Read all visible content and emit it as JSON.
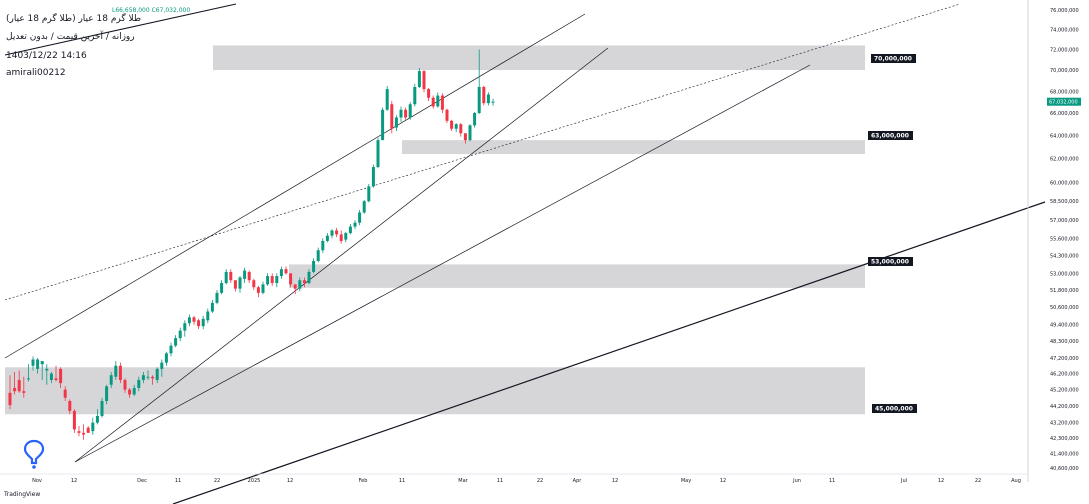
{
  "header": {
    "title": "طلا گرم 18 عیار (طلا گرم 18 عیار)",
    "subtitle": "روزانه / آخرین قیمت / بدون تعدیل",
    "datetime": "1403/12/22 14:16",
    "author": "amirali00212",
    "ohlc": "L66,658,000 C67,032,000"
  },
  "footer": {
    "logo_text": "TradingView"
  },
  "colors": {
    "up": "#089981",
    "down": "#f23645",
    "zone": "#cfcfd2",
    "last_price_bg": "#089981"
  },
  "chart_data": {
    "type": "candlestick",
    "y_scale": "log",
    "yaxis_ticks": [
      "40,600,000",
      "41,400,000",
      "42,300,000",
      "43,200,000",
      "44,200,000",
      "45,200,000",
      "46,200,000",
      "47,200,000",
      "48,300,000",
      "49,400,000",
      "50,600,000",
      "51,800,000",
      "53,000,000",
      "54,300,000",
      "55,600,000",
      "57,000,000",
      "58,500,000",
      "60,000,000",
      "62,000,000",
      "64,000,000",
      "66,000,000",
      "68,000,000",
      "70,000,000",
      "72,000,000",
      "74,000,000",
      "76,000,000"
    ],
    "xaxis_ticks": [
      "Nov",
      "12",
      "Dec",
      "11",
      "22",
      "2025",
      "12",
      "Feb",
      "11",
      "Mar",
      "11",
      "22",
      "Apr",
      "12",
      "May",
      "12",
      "Jun",
      "11",
      "Jul",
      "12",
      "22",
      "Aug"
    ],
    "last_price": "67,032,000",
    "zones": [
      {
        "label": "70,000,000",
        "low": 70000000,
        "high": 72400000
      },
      {
        "label": "63,000,000",
        "low": 62400000,
        "high": 63600000
      },
      {
        "label": "53,000,000",
        "low": 51950000,
        "high": 53650000
      },
      {
        "label": "45,000,000",
        "low": 43700000,
        "high": 46600000
      }
    ],
    "candles": [
      [
        45000000,
        45900000,
        44250000,
        44000000,
        46100000
      ],
      [
        45300000,
        46000000,
        45100000,
        44900000,
        46300000
      ],
      [
        45800000,
        45800000,
        45100000,
        45000000,
        46400000
      ],
      [
        45100000,
        45900000,
        45000000,
        44700000,
        46000000
      ],
      [
        45900000,
        46700000,
        45900000,
        45700000,
        46800000
      ],
      [
        46700000,
        46500000,
        47100000,
        46400000,
        47300000
      ],
      [
        46500000,
        46300000,
        47100000,
        46200000,
        47200000
      ],
      [
        46800000,
        46000000,
        47000000,
        45800000,
        47000000
      ],
      [
        46400000,
        45700000,
        46500000,
        45500000,
        46800000
      ],
      [
        45800000,
        45800000,
        46200000,
        45600000,
        46300000
      ],
      [
        45900000,
        46600000,
        45800000,
        45700000,
        46700000
      ],
      [
        46500000,
        46500000,
        45600000,
        45300000,
        46600000
      ],
      [
        45200000,
        45000000,
        44700000,
        44500000,
        45400000
      ],
      [
        44500000,
        44500000,
        43900000,
        43700000,
        44600000
      ],
      [
        43900000,
        43900000,
        42800000,
        42600000,
        44000000
      ],
      [
        42700000,
        42600000,
        42600000,
        42400000,
        43000000
      ],
      [
        42600000,
        43000000,
        42500000,
        42200000,
        43100000
      ],
      [
        42900000,
        42900000,
        42600000,
        42600000,
        43000000
      ],
      [
        42700000,
        42700000,
        43200000,
        42500000,
        43500000
      ],
      [
        43200000,
        43400000,
        43600000,
        43100000,
        44000000
      ],
      [
        43600000,
        43700000,
        44500000,
        43500000,
        44700000
      ],
      [
        44500000,
        44700000,
        45400000,
        44300000,
        45500000
      ],
      [
        45500000,
        45500000,
        46100000,
        45300000,
        46300000
      ],
      [
        46000000,
        46400000,
        46700000,
        45800000,
        47000000
      ],
      [
        46700000,
        46800000,
        45800000,
        45600000,
        46900000
      ],
      [
        45800000,
        45800000,
        45200000,
        45000000,
        45900000
      ],
      [
        45200000,
        45200000,
        44900000,
        44700000,
        45300000
      ],
      [
        44900000,
        44900000,
        45300000,
        44800000,
        45500000
      ],
      [
        45300000,
        45300000,
        45800000,
        45100000,
        46000000
      ],
      [
        45800000,
        45800000,
        46100000,
        45600000,
        46300000
      ],
      [
        46000000,
        46300000,
        46000000,
        45800000,
        46400000
      ],
      [
        46000000,
        45700000,
        45900000,
        45500000,
        46100000
      ],
      [
        45800000,
        45800000,
        46500000,
        45600000,
        46600000
      ],
      [
        46500000,
        46200000,
        46900000,
        46000000,
        47100000
      ],
      [
        46900000,
        47000000,
        47500000,
        46700000,
        47600000
      ],
      [
        47500000,
        47500000,
        48000000,
        47300000,
        48200000
      ],
      [
        48000000,
        48100000,
        48500000,
        47900000,
        48700000
      ],
      [
        48500000,
        48600000,
        49000000,
        48300000,
        49200000
      ],
      [
        49000000,
        48800000,
        49500000,
        48600000,
        49700000
      ],
      [
        49500000,
        49500000,
        49900000,
        49300000,
        50100000
      ],
      [
        49900000,
        49800000,
        49600000,
        49400000,
        50000000
      ],
      [
        49700000,
        49500000,
        49300000,
        49100000,
        49800000
      ],
      [
        49300000,
        49300000,
        49800000,
        49100000,
        50000000
      ],
      [
        49700000,
        49700000,
        50300000,
        49500000,
        50500000
      ],
      [
        50300000,
        50300000,
        50900000,
        50200000,
        51100000
      ],
      [
        50900000,
        51000000,
        51600000,
        50800000,
        51800000
      ],
      [
        51600000,
        51700000,
        52300000,
        51500000,
        52500000
      ],
      [
        52300000,
        52300000,
        53100000,
        52200000,
        53300000
      ],
      [
        53100000,
        53000000,
        52500000,
        52300000,
        53300000
      ],
      [
        52500000,
        52300000,
        51900000,
        51700000,
        52500000
      ],
      [
        51900000,
        51800000,
        52700000,
        51600000,
        52800000
      ],
      [
        52600000,
        52500000,
        53200000,
        52300000,
        53400000
      ],
      [
        53100000,
        53000000,
        52500000,
        52300000,
        53200000
      ],
      [
        52500000,
        52400000,
        52000000,
        51800000,
        52600000
      ],
      [
        52000000,
        52000000,
        51600000,
        51300000,
        52100000
      ],
      [
        51600000,
        51600000,
        52200000,
        51500000,
        52400000
      ],
      [
        52200000,
        52200000,
        52800000,
        52100000,
        53000000
      ],
      [
        52800000,
        52800000,
        52300000,
        52100000,
        53000000
      ],
      [
        52300000,
        52300000,
        52800000,
        52000000,
        53000000
      ],
      [
        52800000,
        52800000,
        53300000,
        52600000,
        53500000
      ],
      [
        53300000,
        53300000,
        53000000,
        52900000,
        53500000
      ],
      [
        53000000,
        52600000,
        52200000,
        52000000,
        52800000
      ],
      [
        52200000,
        51800000,
        51900000,
        51500000,
        52200000
      ],
      [
        51900000,
        51900000,
        52500000,
        51700000,
        52700000
      ],
      [
        52500000,
        52500000,
        52300000,
        52000000,
        52700000
      ],
      [
        52300000,
        52300000,
        53100000,
        52200000,
        53300000
      ],
      [
        53100000,
        53100000,
        53900000,
        53000000,
        54100000
      ],
      [
        53900000,
        53900000,
        54700000,
        53800000,
        54900000
      ],
      [
        54700000,
        54700000,
        55400000,
        54500000,
        55600000
      ],
      [
        55400000,
        55400000,
        55800000,
        55300000,
        56000000
      ],
      [
        55800000,
        55800000,
        56200000,
        55600000,
        56300000
      ],
      [
        56200000,
        56200000,
        55900000,
        55700000,
        56400000
      ],
      [
        55900000,
        56000000,
        55400000,
        55200000,
        56200000
      ],
      [
        55500000,
        55500000,
        56000000,
        55300000,
        56100000
      ],
      [
        56000000,
        56000000,
        56500000,
        55900000,
        56700000
      ],
      [
        56500000,
        56500000,
        56800000,
        56300000,
        57000000
      ],
      [
        56800000,
        56800000,
        57600000,
        56600000,
        57800000
      ],
      [
        57600000,
        57600000,
        58500000,
        57500000,
        58600000
      ],
      [
        58500000,
        58600000,
        59700000,
        58400000,
        59900000
      ],
      [
        59700000,
        59800000,
        61300000,
        59600000,
        61500000
      ],
      [
        61300000,
        61400000,
        63600000,
        61200000,
        63800000
      ],
      [
        63600000,
        63800000,
        66300000,
        63600000,
        66500000
      ],
      [
        66300000,
        66400000,
        68200000,
        66200000,
        68500000
      ],
      [
        66800000,
        66800000,
        64600000,
        64200000,
        67100000
      ],
      [
        64700000,
        64700000,
        65600000,
        64400000,
        65800000
      ],
      [
        65600000,
        65500000,
        66300000,
        65200000,
        66600000
      ],
      [
        66300000,
        66200000,
        65600000,
        65400000,
        66500000
      ],
      [
        65600000,
        65500000,
        66800000,
        65400000,
        67000000
      ],
      [
        66800000,
        66800000,
        68400000,
        66600000,
        68700000
      ],
      [
        68400000,
        68500000,
        69900000,
        68300000,
        70200000
      ],
      [
        69900000,
        69700000,
        68200000,
        67900000,
        70000000
      ],
      [
        68200000,
        68100000,
        67400000,
        67100000,
        68300000
      ],
      [
        67400000,
        67400000,
        66600000,
        66400000,
        67600000
      ],
      [
        66600000,
        66600000,
        67600000,
        66500000,
        67900000
      ],
      [
        67600000,
        67600000,
        66300000,
        66000000,
        67800000
      ],
      [
        66300000,
        66300000,
        65300000,
        65100000,
        66400000
      ],
      [
        65300000,
        65200000,
        64600000,
        64400000,
        65400000
      ],
      [
        64600000,
        64500000,
        65000000,
        64300000,
        65100000
      ],
      [
        65000000,
        64900000,
        64200000,
        63900000,
        65100000
      ],
      [
        64200000,
        64000000,
        63600000,
        63300000,
        64200000
      ],
      [
        63600000,
        63600000,
        64900000,
        63500000,
        65000000
      ],
      [
        64900000,
        64900000,
        66000000,
        64700000,
        66100000
      ],
      [
        66000000,
        66000000,
        68400000,
        65900000,
        72000000
      ],
      [
        68400000,
        68400000,
        66900000,
        66700000,
        68500000
      ],
      [
        66900000,
        66900000,
        67700000,
        66700000,
        67900000
      ],
      [
        67000000,
        67000000,
        67032000,
        66658000,
        67300000
      ]
    ]
  }
}
